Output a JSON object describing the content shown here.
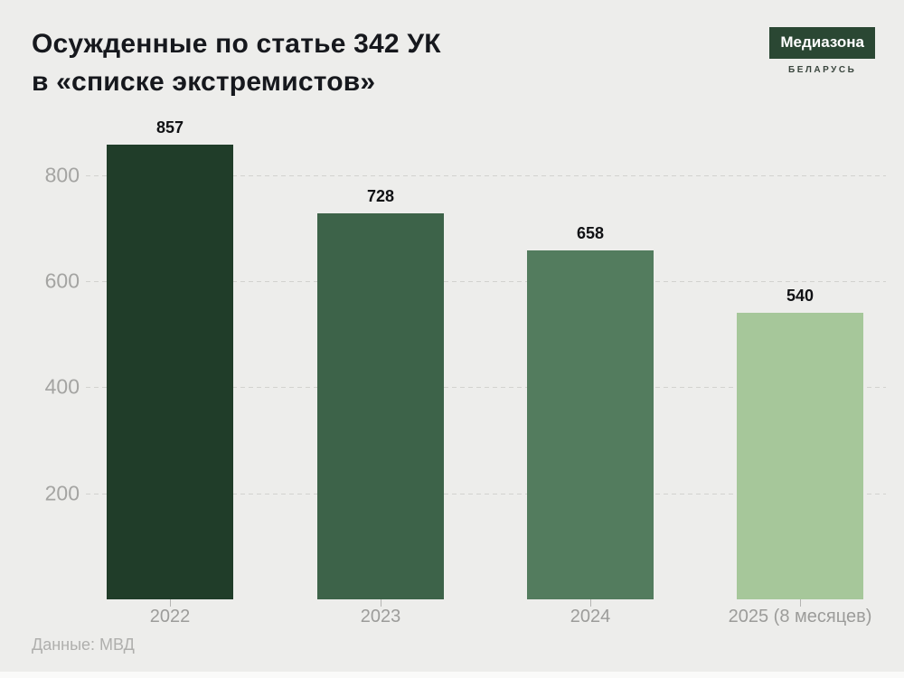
{
  "title": {
    "line1": "Осужденные по статье 342 УК",
    "line2": "в «списке экстремистов»"
  },
  "logo": {
    "name": "Медиазона",
    "region": "БЕЛАРУСЬ",
    "box_color": "#2A4733",
    "text_color": "#FFFFFF"
  },
  "source": "Данные: МВД",
  "colors": {
    "background": "#EDEDEB",
    "title_text": "#16181D",
    "gridline": "#D2D2CF",
    "axis_label": "#A4A4A2",
    "source_text": "#AFAFAD"
  },
  "chart_data": {
    "type": "bar",
    "title": "Осужденные по статье 342 УК в «списке экстремистов»",
    "categories": [
      "2022",
      "2023",
      "2024",
      "2025 (8 месяцев)"
    ],
    "values": [
      857,
      728,
      658,
      540
    ],
    "bar_colors": [
      "#203D29",
      "#3D6349",
      "#537C5E",
      "#A6C79A"
    ],
    "data_labels": [
      "857",
      "728",
      "658",
      "540"
    ],
    "yticks": [
      200,
      400,
      600,
      800
    ],
    "ylim": [
      0,
      880
    ],
    "xlabel": "",
    "ylabel": "",
    "grid": "horizontal-dashed",
    "legend": "none",
    "source": "Данные: МВД"
  }
}
